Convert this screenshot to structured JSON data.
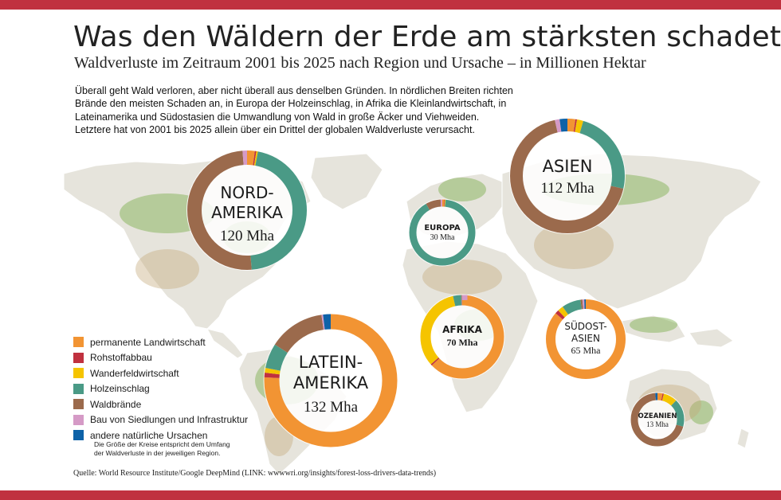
{
  "header": {
    "title": "Was den Wäldern der Erde am stärksten schadet",
    "subtitle": "Waldverluste im Zeitraum 2001 bis 2025 nach Region und Ursache – in Millionen Hektar"
  },
  "intro_lines": [
    "Überall geht Wald verloren, aber nicht überall aus denselben Gründen. In nördlichen Breiten richten",
    "Brände den meisten Schaden an, in Europa der Holzeinschlag, in Afrika die Kleinlandwirtschaft, in",
    "Lateinamerika und Südostasien die Umwandlung von Wald in große Äcker und Viehweiden.",
    "Letztere hat von 2001 bis 2025 allein über ein Drittel der globalen Waldverluste verursacht."
  ],
  "colors": {
    "frame": "#c0313f",
    "map_land": "#e6e4dc",
    "map_forest": "#7aae4a",
    "map_dry": "#c4a877",
    "map_border": "#ffffff"
  },
  "legend": [
    {
      "label": "permanente Landwirtschaft",
      "color": "#f29433"
    },
    {
      "label": "Rohstoffabbau",
      "color": "#c0313f"
    },
    {
      "label": "Wanderfeldwirtschaft",
      "color": "#f5c400"
    },
    {
      "label": "Holzeinschlag",
      "color": "#4a9a86"
    },
    {
      "label": "Waldbrände",
      "color": "#9b6a4c"
    },
    {
      "label": "Bau von Siedlungen und Infrastruktur",
      "color": "#d59ac6"
    },
    {
      "label": "andere natürliche Ursachen",
      "color": "#0d62a8"
    }
  ],
  "note_lines": [
    "Die Größe der Kreise entspricht dem Umfang",
    "der Waldverluste in der jeweiligen Region."
  ],
  "source": "Quelle: World Resource Institute/Google DeepMind (LINK: wwwwri.org/insights/forest-loss-drivers-data-trends)",
  "chart_data": {
    "type": "donut",
    "title": "Was den Wäldern der Erde am stärksten schadet",
    "subtitle": "Waldverluste im Zeitraum 2001 bis 2025 nach Region und Ursache – in Millionen Hektar",
    "categories": [
      "permanente Landwirtschaft",
      "Rohstoffabbau",
      "Wanderfeldwirtschaft",
      "Holzeinschlag",
      "Waldbrände",
      "Bau von Siedlungen und Infrastruktur",
      "andere natürliche Ursachen"
    ],
    "series": [
      {
        "name_lines": [
          "NORD-",
          "AMERIKA"
        ],
        "total_label": "120 Mha",
        "total": 120,
        "values": [
          2.5,
          0.5,
          0.5,
          55,
          60,
          1.5,
          0
        ]
      },
      {
        "name_lines": [
          "ASIEN"
        ],
        "total_label": "112 Mha",
        "total": 112,
        "values": [
          2.5,
          0.5,
          2,
          27,
          76,
          1.5,
          2.5
        ]
      },
      {
        "name_lines": [
          "EUROPA"
        ],
        "total_label": "30 Mha",
        "total": 30,
        "values": [
          0.3,
          0.1,
          0.1,
          27,
          2.2,
          0.3,
          0
        ]
      },
      {
        "name_lines": [
          "LATEIN-",
          "AMERIKA"
        ],
        "total_label": "132 Mha",
        "total": 132,
        "values": [
          100,
          1.5,
          1.5,
          8,
          18,
          0.5,
          2.5
        ]
      },
      {
        "name_lines": [
          "AFRIKA"
        ],
        "total_label": "70 Mha",
        "total": 70,
        "values": [
          44,
          0.4,
          23,
          2.2,
          0.2,
          0.2,
          0
        ]
      },
      {
        "name_lines": [
          "SÜDOST-",
          "ASIEN"
        ],
        "total_label": "65 Mha",
        "total": 65,
        "values": [
          56,
          1,
          1.5,
          5,
          0.5,
          0.5,
          0.5
        ]
      },
      {
        "name_lines": [
          "OZEANIEN"
        ],
        "total_label": "13 Mha",
        "total": 13,
        "values": [
          0.4,
          0.1,
          1.1,
          2.2,
          9,
          0,
          0.2
        ]
      }
    ]
  }
}
